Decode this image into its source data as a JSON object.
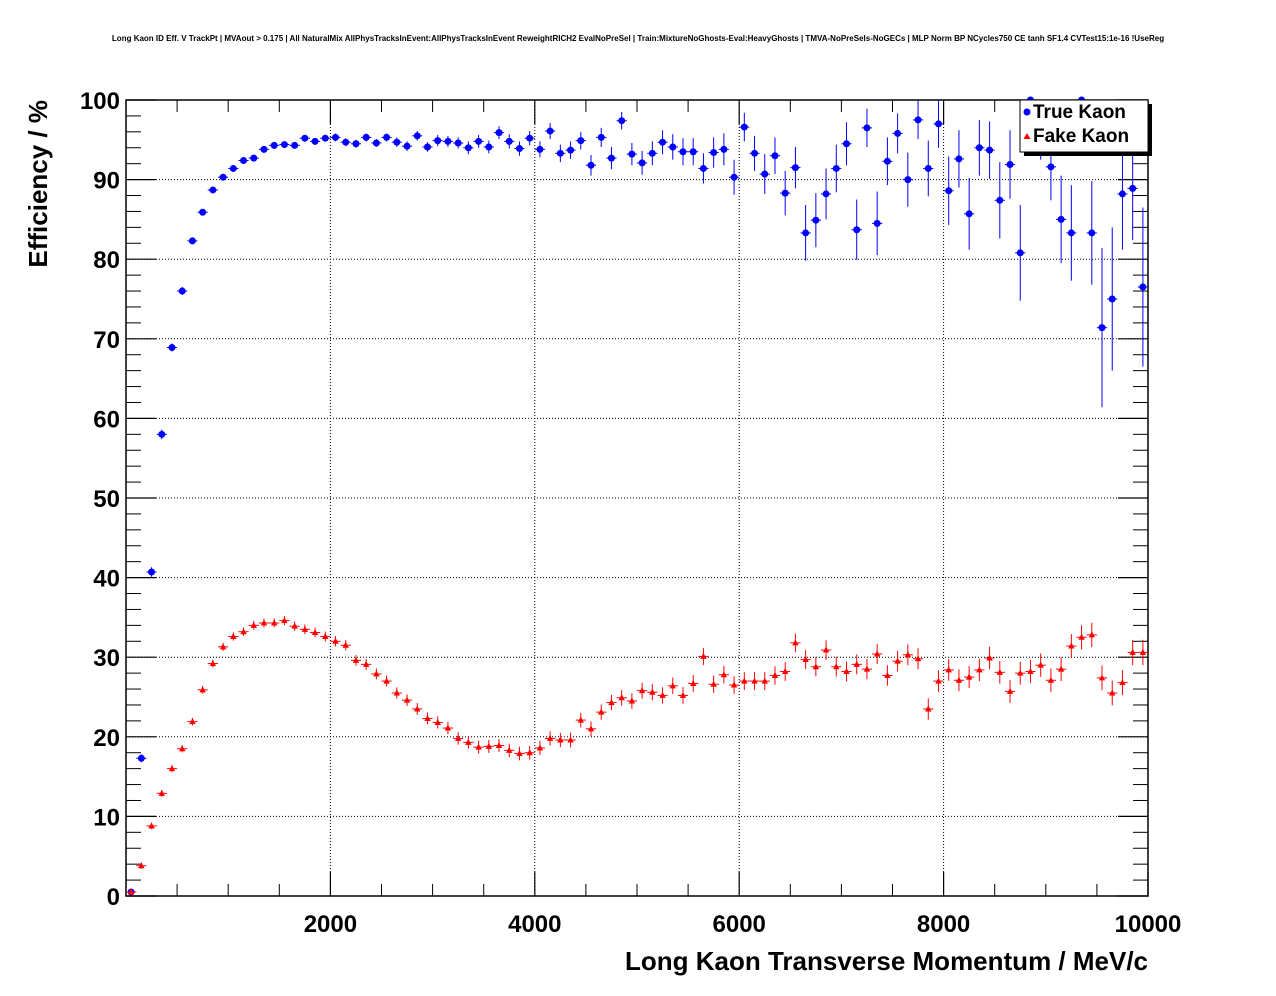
{
  "chart_data": {
    "type": "scatter",
    "title": "Long Kaon ID Eff. V TrackPt | MVAout > 0.175 | All NaturalMix AllPhysTracksInEvent:AllPhysTracksInEvent ReweightRICH2 EvalNoPreSel | Train:MixtureNoGhosts-Eval:HeavyGhosts | TMVA-NoPreSels-NoGECs | MLP Norm BP NCycles750 CE tanh SF1.4 CVTest15:1e-16 !UseReg",
    "xlabel": "Long Kaon Transverse Momentum / MeV/c",
    "ylabel": "Efficiency / %",
    "xlim": [
      0,
      10000
    ],
    "ylim": [
      0,
      100
    ],
    "xticks": [
      "2000",
      "4000",
      "6000",
      "8000",
      "10000"
    ],
    "yticks": [
      "0",
      "10",
      "20",
      "30",
      "40",
      "50",
      "60",
      "70",
      "80",
      "90",
      "100"
    ],
    "grid": true,
    "legend_position": "top-right",
    "series": [
      {
        "name": "True Kaon",
        "color": "#0000ff",
        "marker": "circle",
        "x": [
          50,
          150,
          250,
          350,
          450,
          550,
          650,
          750,
          850,
          950,
          1050,
          1150,
          1250,
          1350,
          1450,
          1550,
          1650,
          1750,
          1850,
          1950,
          2050,
          2150,
          2250,
          2350,
          2450,
          2550,
          2650,
          2750,
          2850,
          2950,
          3050,
          3150,
          3250,
          3350,
          3450,
          3550,
          3650,
          3750,
          3850,
          3950,
          4050,
          4150,
          4250,
          4350,
          4450,
          4550,
          4650,
          4750,
          4850,
          4950,
          5050,
          5150,
          5250,
          5350,
          5450,
          5550,
          5650,
          5750,
          5850,
          5950,
          6050,
          6150,
          6250,
          6350,
          6450,
          6550,
          6650,
          6750,
          6850,
          6950,
          7050,
          7150,
          7250,
          7350,
          7450,
          7550,
          7650,
          7750,
          7850,
          7950,
          8050,
          8150,
          8250,
          8350,
          8450,
          8550,
          8650,
          8750,
          8850,
          8950,
          9050,
          9150,
          9250,
          9350,
          9450,
          9550,
          9650,
          9750,
          9850,
          9950
        ],
        "y": [
          0.5,
          17.3,
          40.7,
          58,
          68.9,
          76,
          82.3,
          85.9,
          88.7,
          90.3,
          91.4,
          92.4,
          92.7,
          93.8,
          94.3,
          94.4,
          94.3,
          95.2,
          94.8,
          95.2,
          95.3,
          94.7,
          94.5,
          95.3,
          94.6,
          95.3,
          94.7,
          94.2,
          95.5,
          94.1,
          94.9,
          94.8,
          94.6,
          94,
          94.8,
          94.1,
          95.9,
          94.8,
          93.9,
          95.2,
          93.8,
          96.1,
          93.3,
          93.7,
          94.9,
          91.8,
          95.3,
          92.7,
          97.4,
          93.2,
          92.1,
          93.3,
          94.7,
          94.1,
          93.5,
          93.5,
          91.4,
          93.4,
          93.8,
          90.3,
          96.6,
          93.3,
          90.7,
          93,
          88.3,
          91.5,
          83.3,
          84.9,
          88.2,
          91.4,
          94.5,
          83.7,
          96.5,
          84.5,
          92.3,
          95.8,
          90,
          97.5,
          91.4,
          97,
          88.6,
          92.6,
          85.7,
          94,
          93.7,
          87.4,
          91.9,
          80.8,
          100,
          96,
          91.6,
          85,
          83.3,
          100,
          83.3,
          71.4,
          75,
          88.2,
          88.9,
          76.5
        ],
        "yerr": [
          0.3,
          0.5,
          0.6,
          0.6,
          0.5,
          0.5,
          0.4,
          0.4,
          0.4,
          0.4,
          0.4,
          0.4,
          0.4,
          0.4,
          0.4,
          0.4,
          0.4,
          0.4,
          0.4,
          0.4,
          0.5,
          0.5,
          0.5,
          0.5,
          0.5,
          0.5,
          0.6,
          0.6,
          0.6,
          0.6,
          0.7,
          0.7,
          0.7,
          0.8,
          0.8,
          0.8,
          0.8,
          0.9,
          0.9,
          0.9,
          1,
          1,
          1.1,
          1.1,
          1.1,
          1.3,
          1.2,
          1.4,
          1.1,
          1.4,
          1.5,
          1.5,
          1.5,
          1.6,
          1.7,
          1.7,
          1.9,
          1.9,
          2,
          2.2,
          1.8,
          2.2,
          2.5,
          2.3,
          2.8,
          2.6,
          3.5,
          3.4,
          3.2,
          3,
          2.7,
          3.8,
          2.4,
          4,
          3,
          2.5,
          3.4,
          2.4,
          3.5,
          3,
          4.3,
          3.6,
          4.5,
          3.5,
          3.6,
          4.8,
          4.3,
          6,
          2,
          3.5,
          4.2,
          5.5,
          6,
          2,
          6.5,
          10,
          9,
          7,
          6.5,
          10
        ]
      },
      {
        "name": "Fake Kaon",
        "color": "#ff0000",
        "marker": "triangle",
        "x": [
          50,
          150,
          250,
          350,
          450,
          550,
          650,
          750,
          850,
          950,
          1050,
          1150,
          1250,
          1350,
          1450,
          1550,
          1650,
          1750,
          1850,
          1950,
          2050,
          2150,
          2250,
          2350,
          2450,
          2550,
          2650,
          2750,
          2850,
          2950,
          3050,
          3150,
          3250,
          3350,
          3450,
          3550,
          3650,
          3750,
          3850,
          3950,
          4050,
          4150,
          4250,
          4350,
          4450,
          4550,
          4650,
          4750,
          4850,
          4950,
          5050,
          5150,
          5250,
          5350,
          5450,
          5550,
          5650,
          5750,
          5850,
          5950,
          6050,
          6150,
          6250,
          6350,
          6450,
          6550,
          6650,
          6750,
          6850,
          6950,
          7050,
          7150,
          7250,
          7350,
          7450,
          7550,
          7650,
          7750,
          7850,
          7950,
          8050,
          8150,
          8250,
          8350,
          8450,
          8550,
          8650,
          8750,
          8850,
          8950,
          9050,
          9150,
          9250,
          9350,
          9450,
          9550,
          9650,
          9750,
          9850,
          9950
        ],
        "y": [
          0.5,
          3.8,
          8.8,
          12.9,
          16,
          18.5,
          21.9,
          25.9,
          29.2,
          31.3,
          32.6,
          33.2,
          34,
          34.3,
          34.3,
          34.6,
          33.9,
          33.5,
          33.1,
          32.6,
          32,
          31.5,
          29.6,
          29.1,
          27.9,
          27,
          25.5,
          24.6,
          23.5,
          22.3,
          21.8,
          21.1,
          19.8,
          19.3,
          18.7,
          18.8,
          18.9,
          18.3,
          17.9,
          18,
          18.6,
          19.8,
          19.6,
          19.6,
          22.1,
          21,
          23.1,
          24.3,
          24.9,
          24.5,
          25.8,
          25.6,
          25.2,
          26.4,
          25.2,
          26.7,
          30.1,
          26.6,
          27.8,
          26.5,
          27,
          27,
          27,
          27.7,
          28.2,
          31.8,
          29.7,
          28.8,
          30.9,
          28.8,
          28.2,
          29.1,
          28.5,
          30.4,
          27.7,
          29.5,
          30.3,
          29.8,
          23.5,
          27,
          28.4,
          27.1,
          27.5,
          28.4,
          29.9,
          28.1,
          25.7,
          28,
          28.2,
          29,
          27.1,
          28.5,
          31.4,
          32.5,
          32.8,
          27.4,
          25.5,
          26.8,
          30.6,
          30.6
        ]
      }
    ]
  }
}
